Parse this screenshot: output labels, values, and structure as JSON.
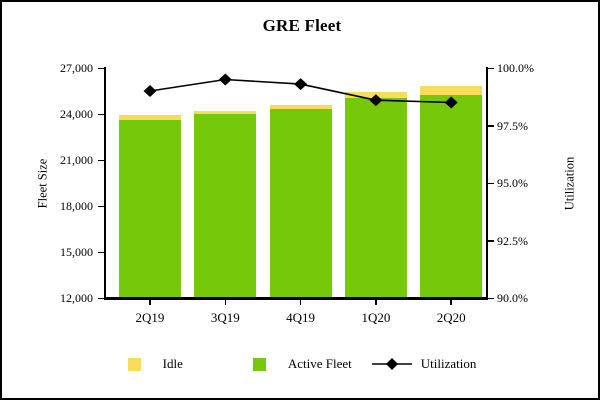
{
  "title": "GRE Fleet",
  "left_axis": {
    "label": "Fleet Size",
    "min": 12000,
    "max": 27000,
    "ticks": [
      "27,000",
      "24,000",
      "21,000",
      "18,000",
      "15,000",
      "12,000"
    ]
  },
  "right_axis": {
    "label": "Utilization",
    "min": 90,
    "max": 100,
    "ticks": [
      "100.0%",
      "97.5%",
      "95.0%",
      "92.5%",
      "90.0%"
    ]
  },
  "legend": {
    "idle": {
      "label": "Idle",
      "color": "#F9DC5C"
    },
    "active": {
      "label": "Active Fleet",
      "color": "#76C80B"
    },
    "utilization": {
      "label": "Utilization",
      "color": "#000000"
    }
  },
  "colors": {
    "idle": "#F9DC5C",
    "active": "#76C80B",
    "line": "#000000",
    "axis": "#000000"
  },
  "chart_data": {
    "type": "bar",
    "subtype": "stacked-bars-with-line",
    "title": "GRE Fleet",
    "categories": [
      "2Q19",
      "3Q19",
      "4Q19",
      "1Q20",
      "2Q20"
    ],
    "series": [
      {
        "name": "Active Fleet",
        "type": "bar",
        "stack": "fleet",
        "axis": "left",
        "color": "#76C80B",
        "values": [
          23600,
          24000,
          24350,
          25050,
          25250
        ]
      },
      {
        "name": "Idle",
        "type": "bar",
        "stack": "fleet",
        "axis": "left",
        "color": "#F9DC5C",
        "values": [
          350,
          200,
          250,
          400,
          550
        ]
      },
      {
        "name": "Utilization",
        "type": "line",
        "axis": "right",
        "color": "#000000",
        "marker": "diamond",
        "values": [
          99.0,
          99.5,
          99.3,
          98.6,
          98.5
        ]
      }
    ],
    "xlabel": "",
    "ylabel_left": "Fleet Size",
    "ylabel_right": "Utilization",
    "ylim_left": [
      12000,
      27000
    ],
    "ylim_right": [
      90,
      100
    ],
    "grid": false,
    "legend_position": "bottom"
  }
}
